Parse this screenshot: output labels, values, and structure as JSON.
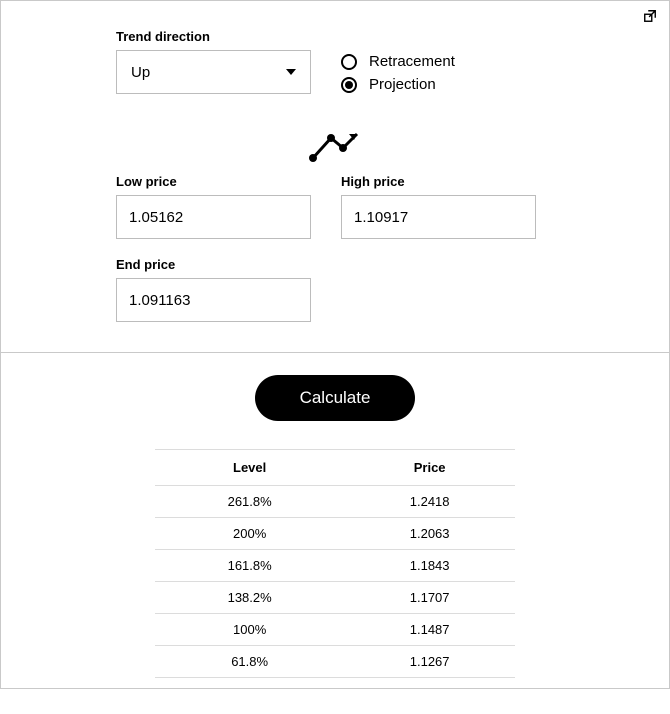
{
  "top": {
    "trend_label": "Trend direction",
    "trend_value": "Up",
    "radios": {
      "retracement": "Retracement",
      "projection": "Projection",
      "selected": "projection"
    },
    "low_label": "Low price",
    "low_value": "1.05162",
    "high_label": "High price",
    "high_value": "1.10917",
    "end_label": "End price",
    "end_value": "1.091163"
  },
  "bottom": {
    "calculate_label": "Calculate",
    "table": {
      "headers": {
        "level": "Level",
        "price": "Price"
      },
      "rows": [
        {
          "level": "261.8%",
          "price": "1.2418"
        },
        {
          "level": "200%",
          "price": "1.2063"
        },
        {
          "level": "161.8%",
          "price": "1.1843"
        },
        {
          "level": "138.2%",
          "price": "1.1707"
        },
        {
          "level": "100%",
          "price": "1.1487"
        },
        {
          "level": "61.8%",
          "price": "1.1267"
        }
      ]
    }
  },
  "colors": {
    "border": "#c9c9c9",
    "input_border": "#bcbcbc",
    "divider": "#dcdcdc",
    "button_bg": "#000000",
    "button_fg": "#ffffff"
  }
}
